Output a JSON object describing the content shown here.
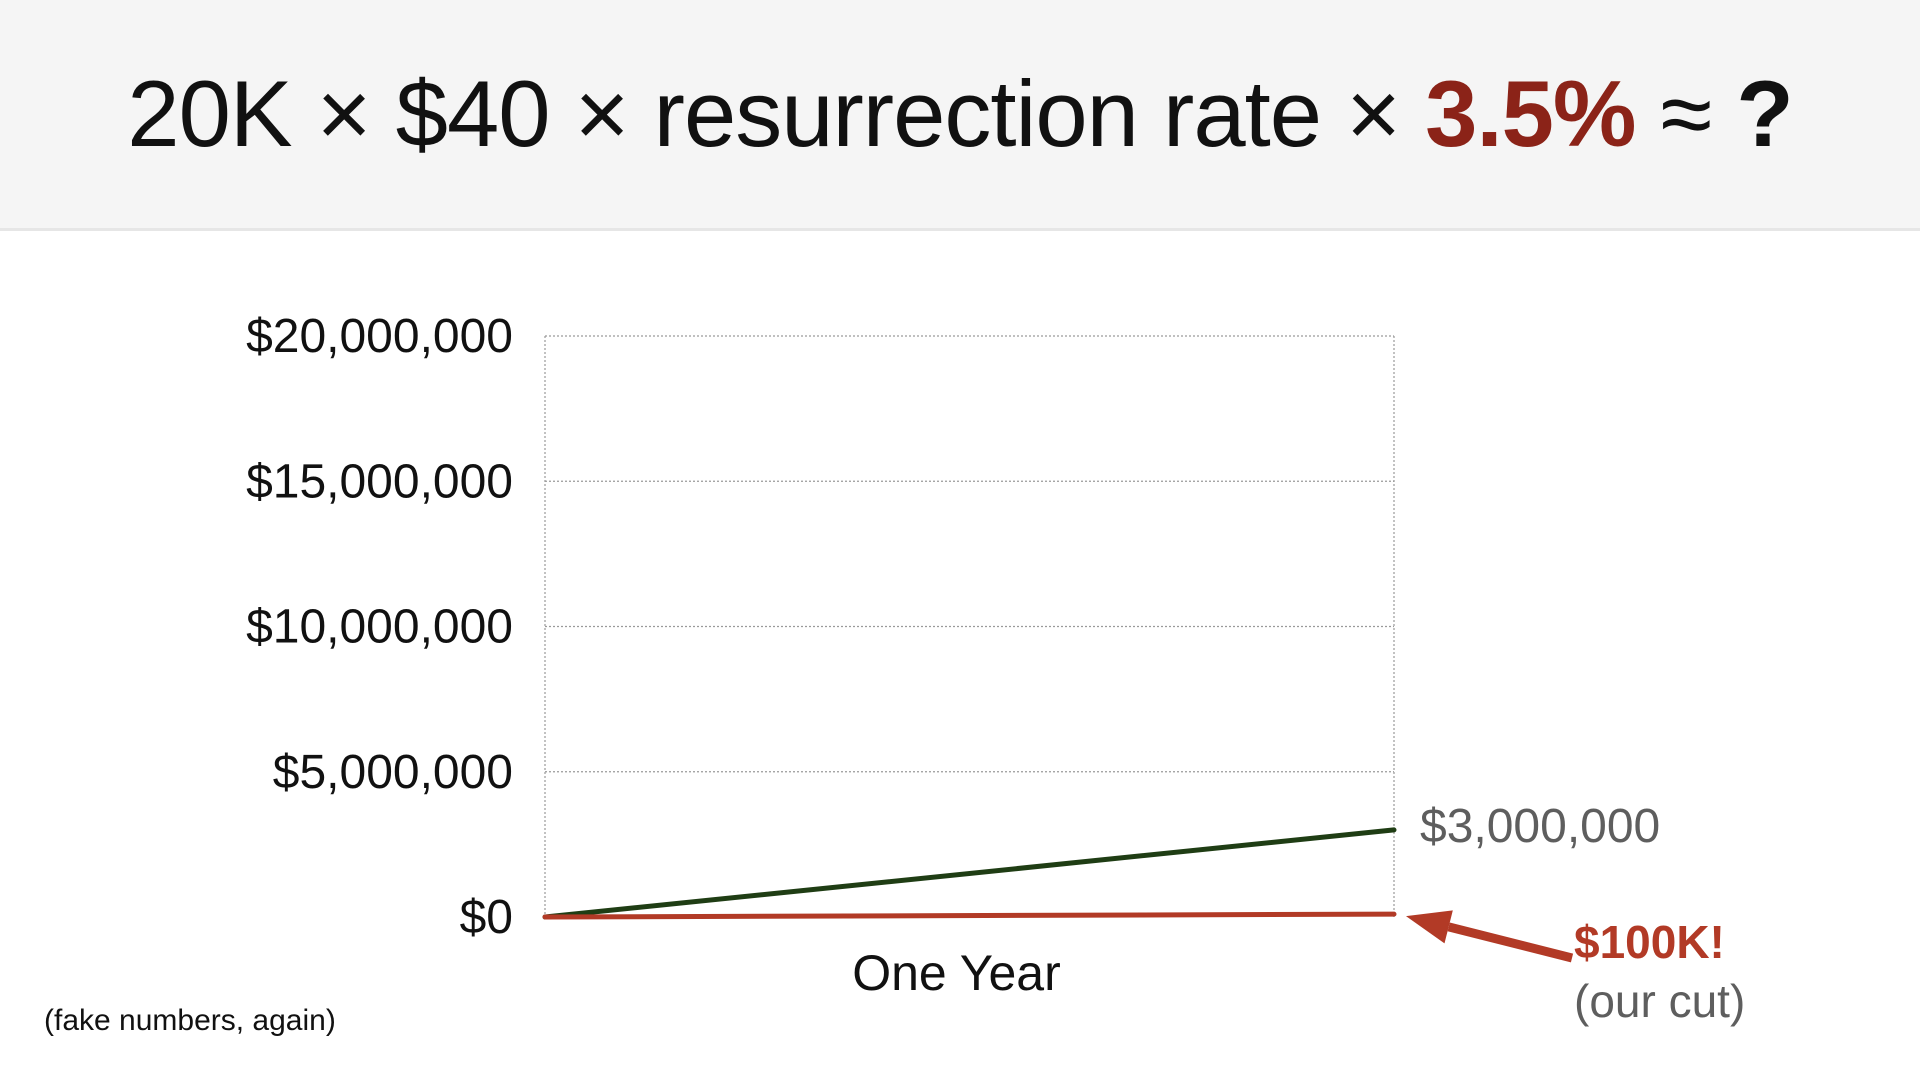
{
  "title": {
    "part1": "20K × $40 × resurrection rate × ",
    "highlight": "3.5%",
    "approx": " ≈ ",
    "question": "?"
  },
  "footnote": "(fake numbers, again)",
  "chart_data": {
    "type": "line",
    "title": "",
    "xlabel": "One Year",
    "ylabel": "",
    "x": [
      0,
      1
    ],
    "ylim": [
      0,
      20000000
    ],
    "ytick_values": [
      0,
      5000000,
      10000000,
      15000000,
      20000000
    ],
    "ytick_labels": [
      "$0",
      "$5,000,000",
      "$10,000,000",
      "$15,000,000",
      "$20,000,000"
    ],
    "grid": true,
    "series": [
      {
        "values": [
          0,
          3000000
        ],
        "color": "#1f3d14"
      },
      {
        "values": [
          0,
          100000
        ],
        "color": "#b23a26"
      }
    ],
    "annotations": [
      {
        "text": "$3,000,000",
        "series": 0
      },
      {
        "text": "$100K!",
        "subtext": "(our cut)",
        "series": 1,
        "arrow": true
      }
    ]
  },
  "colors": {
    "accent_red": "#8b2318",
    "line_green": "#1f3d14",
    "line_red": "#b23a26",
    "annotation_gray": "#5e5e5e"
  }
}
